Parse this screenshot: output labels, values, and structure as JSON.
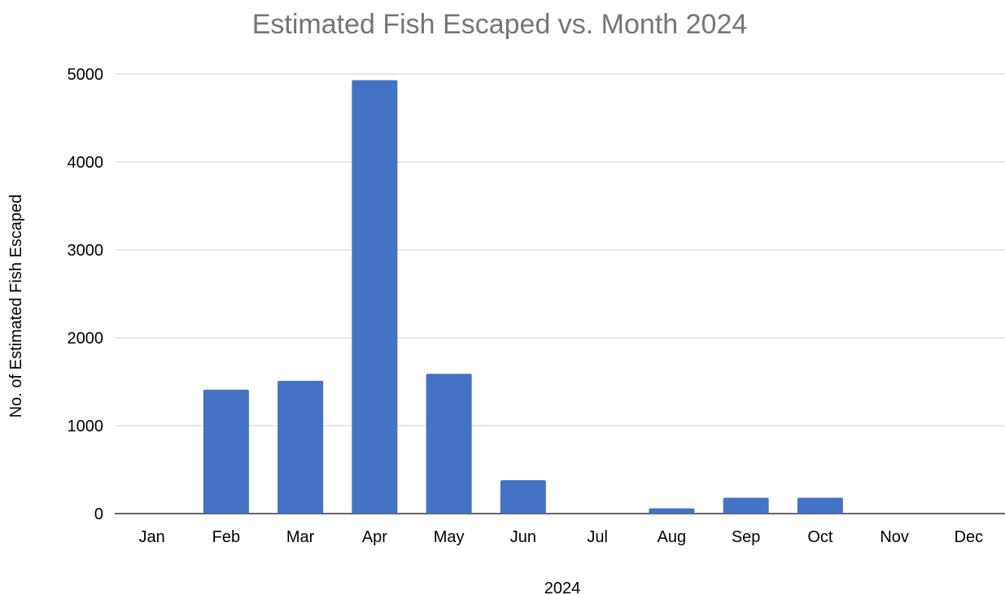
{
  "chart_data": {
    "type": "bar",
    "title": "Estimated Fish Escaped vs. Month 2024",
    "xlabel": "2024",
    "ylabel": "No. of Estimated Fish Escaped",
    "categories": [
      "Jan",
      "Feb",
      "Mar",
      "Apr",
      "May",
      "Jun",
      "Jul",
      "Aug",
      "Sep",
      "Oct",
      "Nov",
      "Dec"
    ],
    "values": [
      0,
      1410,
      1510,
      4930,
      1590,
      380,
      0,
      60,
      180,
      180,
      0,
      0
    ],
    "ylim": [
      0,
      5000
    ],
    "yticks": [
      0,
      1000,
      2000,
      3000,
      4000,
      5000
    ],
    "grid": true,
    "legend": "none",
    "colors": {
      "bar": "#4472c4",
      "title": "#757575",
      "grid": "#cccccc",
      "axis": "#333333"
    }
  }
}
